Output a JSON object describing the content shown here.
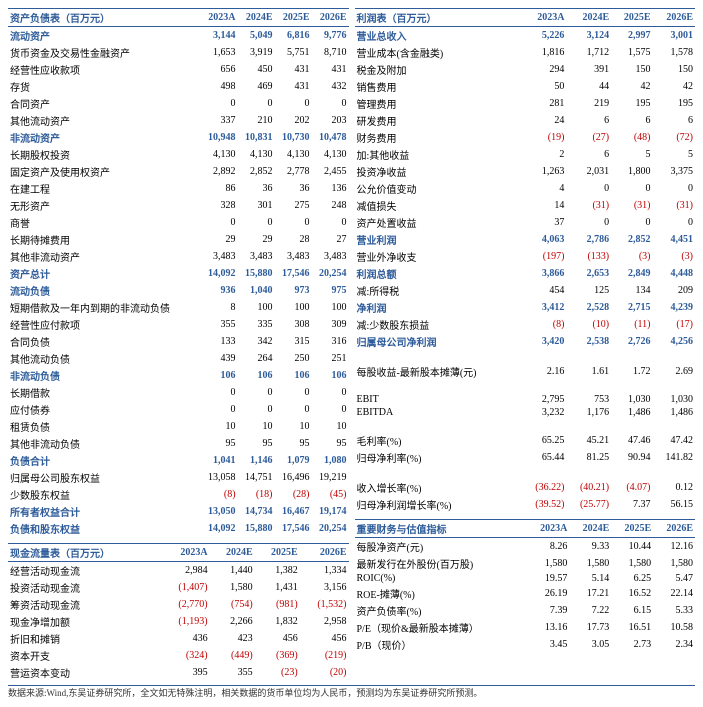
{
  "headers": [
    "2023A",
    "2024E",
    "2025E",
    "2026E"
  ],
  "left": {
    "bs_title": "资产负债表（百万元）",
    "s1": "流动资产",
    "s1v": [
      "3,144",
      "5,049",
      "6,816",
      "9,776"
    ],
    "r1": "货币资金及交易性金融资产",
    "r1v": [
      "1,653",
      "3,919",
      "5,751",
      "8,710"
    ],
    "r2": "经营性应收款项",
    "r2v": [
      "656",
      "450",
      "431",
      "431"
    ],
    "r3": "存货",
    "r3v": [
      "498",
      "469",
      "431",
      "432"
    ],
    "r4": "合同资产",
    "r4v": [
      "0",
      "0",
      "0",
      "0"
    ],
    "r5": "其他流动资产",
    "r5v": [
      "337",
      "210",
      "202",
      "203"
    ],
    "s2": "非流动资产",
    "s2v": [
      "10,948",
      "10,831",
      "10,730",
      "10,478"
    ],
    "r6": "长期股权投资",
    "r6v": [
      "4,130",
      "4,130",
      "4,130",
      "4,130"
    ],
    "r7": "固定资产及使用权资产",
    "r7v": [
      "2,892",
      "2,852",
      "2,778",
      "2,455"
    ],
    "r8": "在建工程",
    "r8v": [
      "86",
      "36",
      "36",
      "136"
    ],
    "r9": "无形资产",
    "r9v": [
      "328",
      "301",
      "275",
      "248"
    ],
    "r10": "商誉",
    "r10v": [
      "0",
      "0",
      "0",
      "0"
    ],
    "r11": "长期待摊费用",
    "r11v": [
      "29",
      "29",
      "28",
      "27"
    ],
    "r12": "其他非流动资产",
    "r12v": [
      "3,483",
      "3,483",
      "3,483",
      "3,483"
    ],
    "s3": "资产总计",
    "s3v": [
      "14,092",
      "15,880",
      "17,546",
      "20,254"
    ],
    "s4": "流动负债",
    "s4v": [
      "936",
      "1,040",
      "973",
      "975"
    ],
    "r13": "短期借款及一年内到期的非流动负债",
    "r13v": [
      "8",
      "100",
      "100",
      "100"
    ],
    "r14": "经营性应付款项",
    "r14v": [
      "355",
      "335",
      "308",
      "309"
    ],
    "r15": "合同负债",
    "r15v": [
      "133",
      "342",
      "315",
      "316"
    ],
    "r16": "其他流动负债",
    "r16v": [
      "439",
      "264",
      "250",
      "251"
    ],
    "s5": "非流动负债",
    "s5v": [
      "106",
      "106",
      "106",
      "106"
    ],
    "r17": "长期借款",
    "r17v": [
      "0",
      "0",
      "0",
      "0"
    ],
    "r18": "应付债券",
    "r18v": [
      "0",
      "0",
      "0",
      "0"
    ],
    "r19": "租赁负债",
    "r19v": [
      "10",
      "10",
      "10",
      "10"
    ],
    "r20": "其他非流动负债",
    "r20v": [
      "95",
      "95",
      "95",
      "95"
    ],
    "s6": "负债合计",
    "s6v": [
      "1,041",
      "1,146",
      "1,079",
      "1,080"
    ],
    "r21": "归属母公司股东权益",
    "r21v": [
      "13,058",
      "14,751",
      "16,496",
      "19,219"
    ],
    "r22": "少数股东权益",
    "r22v": [
      "(8)",
      "(18)",
      "(28)",
      "(45)"
    ],
    "s7": "所有者权益合计",
    "s7v": [
      "13,050",
      "14,734",
      "16,467",
      "19,174"
    ],
    "s8": "负债和股东权益",
    "s8v": [
      "14,092",
      "15,880",
      "17,546",
      "20,254"
    ],
    "cf_title": "现金流量表（百万元）",
    "c1": "经营活动现金流",
    "c1v": [
      "2,984",
      "1,440",
      "1,382",
      "1,334"
    ],
    "c2": "投资活动现金流",
    "c2v": [
      "(1,407)",
      "1,580",
      "1,431",
      "3,156"
    ],
    "c3": "筹资活动现金流",
    "c3v": [
      "(2,770)",
      "(754)",
      "(981)",
      "(1,532)"
    ],
    "c4": "现金净增加额",
    "c4v": [
      "(1,193)",
      "2,266",
      "1,832",
      "2,958"
    ],
    "c5": "折旧和摊销",
    "c5v": [
      "436",
      "423",
      "456",
      "456"
    ],
    "c6": "资本开支",
    "c6v": [
      "(324)",
      "(449)",
      "(369)",
      "(219)"
    ],
    "c7": "营运资本变动",
    "c7v": [
      "395",
      "355",
      "(23)",
      "(20)"
    ]
  },
  "right": {
    "is_title": "利润表（百万元）",
    "p1": "营业总收入",
    "p1v": [
      "5,226",
      "3,124",
      "2,997",
      "3,001"
    ],
    "p2": "营业成本(含金融类)",
    "p2v": [
      "1,816",
      "1,712",
      "1,575",
      "1,578"
    ],
    "p3": "税金及附加",
    "p3v": [
      "294",
      "391",
      "150",
      "150"
    ],
    "p4": "销售费用",
    "p4v": [
      "50",
      "44",
      "42",
      "42"
    ],
    "p5": "管理费用",
    "p5v": [
      "281",
      "219",
      "195",
      "195"
    ],
    "p6": "研发费用",
    "p6v": [
      "24",
      "6",
      "6",
      "6"
    ],
    "p7": "财务费用",
    "p7v": [
      "(19)",
      "(27)",
      "(48)",
      "(72)"
    ],
    "p8": "加:其他收益",
    "p8v": [
      "2",
      "6",
      "5",
      "5"
    ],
    "p9": "投资净收益",
    "p9v": [
      "1,263",
      "2,031",
      "1,800",
      "3,375"
    ],
    "p10": "公允价值变动",
    "p10v": [
      "4",
      "0",
      "0",
      "0"
    ],
    "p11": "减值损失",
    "p11v": [
      "14",
      "(31)",
      "(31)",
      "(31)"
    ],
    "p12": "资产处置收益",
    "p12v": [
      "37",
      "0",
      "0",
      "0"
    ],
    "s9": "营业利润",
    "s9v": [
      "4,063",
      "2,786",
      "2,852",
      "4,451"
    ],
    "p13": "营业外净收支",
    "p13v": [
      "(197)",
      "(133)",
      "(3)",
      "(3)"
    ],
    "s10": "利润总额",
    "s10v": [
      "3,866",
      "2,653",
      "2,849",
      "4,448"
    ],
    "p14": "减:所得税",
    "p14v": [
      "454",
      "125",
      "134",
      "209"
    ],
    "s11": "净利润",
    "s11v": [
      "3,412",
      "2,528",
      "2,715",
      "4,239"
    ],
    "p15": "减:少数股东损益",
    "p15v": [
      "(8)",
      "(10)",
      "(11)",
      "(17)"
    ],
    "s12": "归属母公司净利润",
    "s12v": [
      "3,420",
      "2,538",
      "2,726",
      "4,256"
    ],
    "p16": "每股收益-最新股本摊薄(元)",
    "p16v": [
      "2.16",
      "1.61",
      "1.72",
      "2.69"
    ],
    "p17": "EBIT",
    "p17v": [
      "2,795",
      "753",
      "1,030",
      "1,030"
    ],
    "p18": "EBITDA",
    "p18v": [
      "3,232",
      "1,176",
      "1,486",
      "1,486"
    ],
    "p19": "毛利率(%)",
    "p19v": [
      "65.25",
      "45.21",
      "47.46",
      "47.42"
    ],
    "p20": "归母净利率(%)",
    "p20v": [
      "65.44",
      "81.25",
      "90.94",
      "141.82"
    ],
    "p21": "收入增长率(%)",
    "p21v": [
      "(36.22)",
      "(40.21)",
      "(4.07)",
      "0.12"
    ],
    "p22": "归母净利润增长率(%)",
    "p22v": [
      "(39.52)",
      "(25.77)",
      "7.37",
      "56.15"
    ],
    "m_title": "重要财务与估值指标",
    "m1": "每股净资产(元)",
    "m1v": [
      "8.26",
      "9.33",
      "10.44",
      "12.16"
    ],
    "m2": "最新发行在外股份(百万股)",
    "m2v": [
      "1,580",
      "1,580",
      "1,580",
      "1,580"
    ],
    "m3": "ROIC(%)",
    "m3v": [
      "19.57",
      "5.14",
      "6.25",
      "5.47"
    ],
    "m4": "ROE-摊薄(%)",
    "m4v": [
      "26.19",
      "17.21",
      "16.52",
      "22.14"
    ],
    "m5": "资产负债率(%)",
    "m5v": [
      "7.39",
      "7.22",
      "6.15",
      "5.33"
    ],
    "m6": "P/E（现价&最新股本摊薄）",
    "m6v": [
      "13.16",
      "17.73",
      "16.51",
      "10.58"
    ],
    "m7": "P/B（现价）",
    "m7v": [
      "3.45",
      "3.05",
      "2.73",
      "2.34"
    ]
  },
  "footnote": "数据来源:Wind,东吴证券研究所，全文如无特殊注明，相关数据的货币单位均为人民币，预测均为东吴证券研究所预测。"
}
